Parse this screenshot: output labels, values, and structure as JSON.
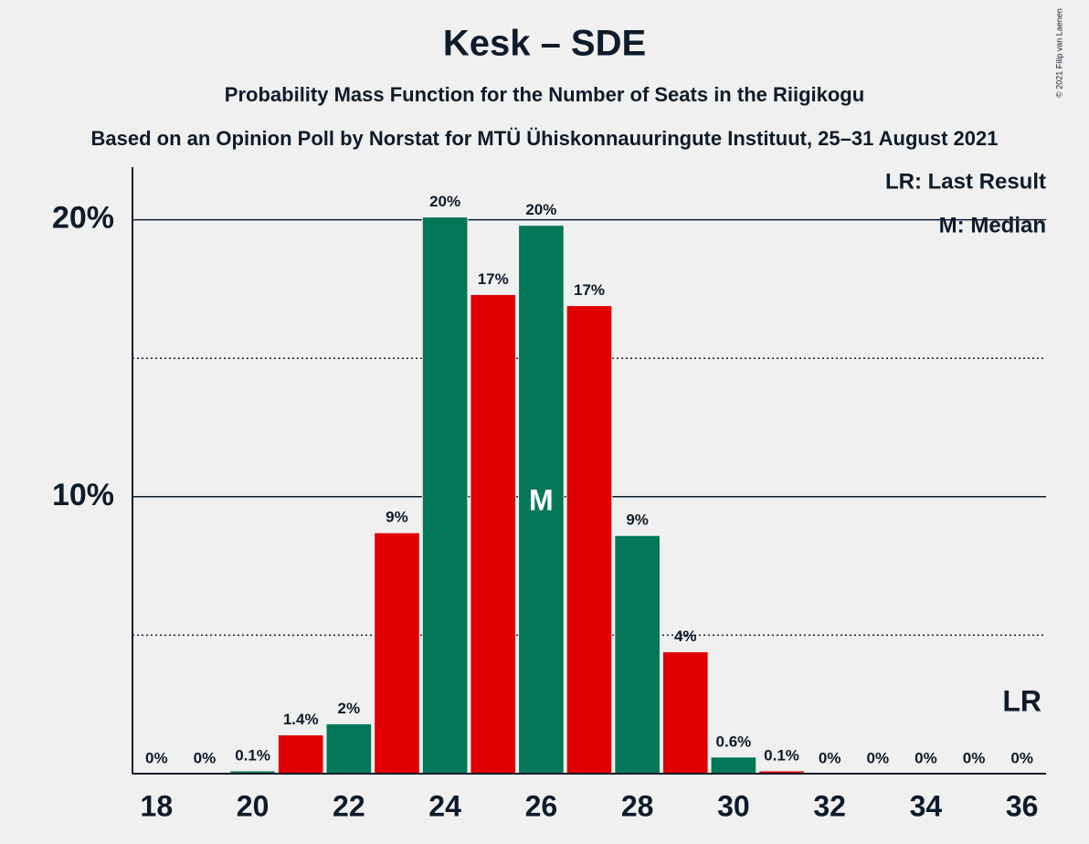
{
  "chart_data": {
    "type": "bar",
    "title": "Kesk – SDE",
    "subtitle": "Probability Mass Function for the Number of Seats in the Riigikogu",
    "source": "Based on an Opinion Poll by Norstat for MTÜ Ühiskonnauuringute Instituut, 25–31 August 2021",
    "copyright": "© 2021 Filip van Laenen",
    "x": [
      18,
      19,
      20,
      21,
      22,
      23,
      24,
      25,
      26,
      27,
      28,
      29,
      30,
      31,
      32,
      33,
      34,
      35,
      36
    ],
    "values": [
      0,
      0,
      0.1,
      1.4,
      1.8,
      8.7,
      20.1,
      17.3,
      19.8,
      16.9,
      8.6,
      4.4,
      0.6,
      0.1,
      0,
      0,
      0,
      0,
      0
    ],
    "value_labels": [
      "0%",
      "0%",
      "0.1%",
      "1.4%",
      "2%",
      "9%",
      "20%",
      "17%",
      "20%",
      "17%",
      "9%",
      "4%",
      "0.6%",
      "0.1%",
      "0%",
      "0%",
      "0%",
      "0%",
      "0%"
    ],
    "colors": [
      "#037758",
      "#e10000",
      "#037758",
      "#e10000",
      "#037758",
      "#e10000",
      "#037758",
      "#e10000",
      "#037758",
      "#e10000",
      "#037758",
      "#e10000",
      "#037758",
      "#e10000",
      "#037758",
      "#e10000",
      "#037758",
      "#e10000",
      "#037758"
    ],
    "xlim": [
      17.5,
      36.5
    ],
    "xticks": [
      18,
      20,
      22,
      24,
      26,
      28,
      30,
      32,
      34,
      36
    ],
    "ylim": [
      0,
      21.9
    ],
    "yticks": [
      {
        "value": 10,
        "label": "10%"
      },
      {
        "value": 20,
        "label": "20%"
      }
    ],
    "minor_yticks": [
      5,
      15
    ],
    "grid": true,
    "median": {
      "x": 26,
      "label": "M"
    },
    "last_result": {
      "x": 36,
      "label": "LR"
    },
    "legend": [
      "LR: Last Result",
      "M: Median"
    ]
  }
}
